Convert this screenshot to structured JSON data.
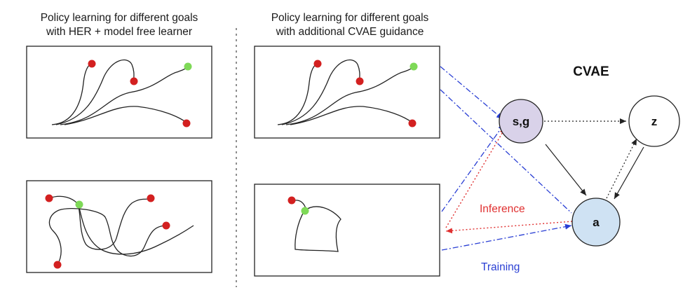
{
  "left_panel": {
    "caption_line1": "Policy learning for different goals",
    "caption_line2": "with HER + model free learner"
  },
  "middle_panel": {
    "caption_line1": "Policy learning for different goals",
    "caption_line2": "with additional CVAE guidance"
  },
  "cvae": {
    "title": "CVAE",
    "nodes": {
      "sg": "s,g",
      "z": "z",
      "a": "a"
    },
    "inference_label": "Inference",
    "training_label": "Training"
  },
  "colors": {
    "goal_green": "#7ed957",
    "point_red": "#d32020",
    "node_sg_fill": "#d9d2e9",
    "node_a_fill": "#cfe2f3",
    "inference": "#e03030",
    "training": "#2a3fd4"
  }
}
